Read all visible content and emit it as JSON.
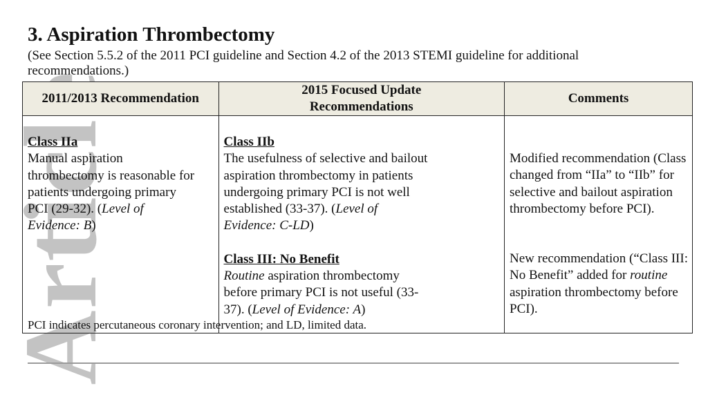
{
  "watermark": "Article",
  "title": "3. Aspiration Thrombectomy",
  "subtitle": "(See Section 5.5.2 of the 2011 PCI guideline and Section 4.2 of the 2013 STEMI guideline for additional recommendations.)",
  "table": {
    "headers": [
      "2011/2013 Recommendation",
      "2015 Focused Update Recommendations",
      "Comments"
    ],
    "cells": [
      [
        {
          "cls": "Class IIa",
          "lines": [
            [
              {
                "t": "Manual aspiration",
                "i": false
              }
            ],
            [
              {
                "t": "thrombectomy is reasonable for",
                "i": false
              }
            ],
            [
              {
                "t": "patients undergoing primary",
                "i": false
              }
            ],
            [
              {
                "t": "PCI (29-32). (",
                "i": false
              },
              {
                "t": "Level of",
                "i": true
              }
            ],
            [
              {
                "t": "Evidence: B",
                "i": true
              },
              {
                "t": ")",
                "i": false
              }
            ]
          ]
        }
      ],
      [
        {
          "cls": "Class IIb",
          "lines": [
            [
              {
                "t": "The usefulness of selective and bailout",
                "i": false
              }
            ],
            [
              {
                "t": "aspiration thrombectomy in patients",
                "i": false
              }
            ],
            [
              {
                "t": "undergoing primary PCI is not well",
                "i": false
              }
            ],
            [
              {
                "t": "established (33-37). (",
                "i": false
              },
              {
                "t": "Level of",
                "i": true
              }
            ],
            [
              {
                "t": "Evidence: C-LD",
                "i": true
              },
              {
                "t": ")",
                "i": false
              }
            ]
          ]
        },
        {
          "cls": "Class III: No Benefit",
          "lines": [
            [
              {
                "t": "Routine",
                "i": true
              },
              {
                "t": " aspiration thrombectomy",
                "i": false
              }
            ],
            [
              {
                "t": "before primary PCI is not useful (33-",
                "i": false
              }
            ],
            [
              {
                "t": "37). (",
                "i": false
              },
              {
                "t": "Level of Evidence: A",
                "i": true
              },
              {
                "t": ")",
                "i": false
              }
            ]
          ]
        }
      ],
      [
        {
          "cls": "",
          "lines": [
            [
              {
                "t": "Modified recommendation (Class",
                "i": false
              }
            ],
            [
              {
                "t": "changed from “IIa” to “IIb” for",
                "i": false
              }
            ],
            [
              {
                "t": "selective and bailout aspiration",
                "i": false
              }
            ],
            [
              {
                "t": "thrombectomy before PCI).",
                "i": false
              }
            ]
          ]
        },
        {
          "cls": "",
          "lines": [
            [
              {
                "t": "New recommendation (“Class III:",
                "i": false
              }
            ],
            [
              {
                "t": "No Benefit” added for ",
                "i": false
              },
              {
                "t": "routine",
                "i": true
              }
            ],
            [
              {
                "t": "aspiration thrombectomy before",
                "i": false
              }
            ],
            [
              {
                "t": "PCI).",
                "i": false
              }
            ]
          ]
        }
      ]
    ]
  },
  "footnote": "PCI indicates percutaneous coronary intervention; and LD, limited data."
}
